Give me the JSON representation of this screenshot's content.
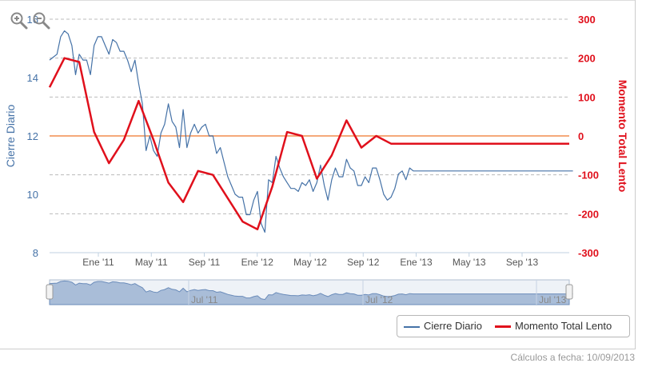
{
  "chart_data": {
    "type": "line",
    "x_labels": [
      "Ene '11",
      "May '11",
      "Sep '11",
      "Ene '12",
      "May '12",
      "Sep '12",
      "Ene '13",
      "May '13",
      "Sep '13"
    ],
    "navigator_labels": [
      "Jul '11",
      "Jul '12",
      "Jul '13"
    ],
    "y_left": {
      "label": "Cierre Diario",
      "ticks": [
        8,
        10,
        12,
        14,
        16
      ],
      "range": [
        8,
        16
      ],
      "color": "#4572a7"
    },
    "y_right": {
      "label": "Momento Total Lento",
      "ticks": [
        -300,
        -200,
        -100,
        0,
        100,
        200,
        300
      ],
      "range": [
        -300,
        300
      ],
      "color": "#e0101c"
    },
    "reference_line": {
      "axis": "right",
      "value": 0,
      "color": "#f5a97a"
    },
    "grid": "horizontal-dashed",
    "legend_position": "bottom-right",
    "series": [
      {
        "name": "Cierre Diario",
        "axis": "left",
        "color": "#4572a7",
        "x": [
          0,
          0.25,
          0.5,
          0.75,
          1,
          1.25,
          1.5,
          1.75,
          2,
          2.25,
          2.5,
          2.75,
          3,
          3.25,
          3.5,
          3.75,
          4,
          4.25,
          4.5,
          4.75,
          5,
          5.25,
          5.5,
          5.75,
          6,
          6.25,
          6.5,
          6.75,
          7,
          7.25,
          7.5,
          7.75,
          8,
          8.25,
          8.5,
          8.75,
          9,
          9.25,
          9.5,
          9.75,
          10,
          10.25,
          10.5,
          10.75,
          11,
          11.25,
          11.5,
          11.75,
          12,
          12.25,
          12.5,
          12.75,
          13,
          13.25,
          13.5,
          13.75,
          14,
          14.25,
          14.5,
          14.75,
          15,
          15.25,
          15.5,
          15.75,
          16,
          16.25,
          16.5,
          16.75,
          17,
          17.25,
          17.5,
          17.75,
          18,
          18.25,
          18.5,
          18.75,
          19,
          19.25,
          19.5,
          19.75,
          20,
          20.25,
          20.5,
          20.75,
          21,
          21.25,
          21.5,
          21.75,
          22,
          22.25,
          22.5,
          22.75,
          23,
          23.25,
          23.5,
          23.75,
          24,
          24.25,
          24.5,
          24.75,
          25,
          25.25,
          25.5,
          25.75,
          26,
          26.25,
          26.5,
          26.75,
          27,
          27.25,
          27.5,
          27.75,
          28,
          28.25,
          28.5,
          28.75,
          29,
          29.25,
          29.5,
          29.75,
          30,
          30.25,
          30.5,
          30.75,
          31,
          31.25,
          31.5,
          31.75,
          32,
          32.25,
          32.5,
          32.75,
          33,
          33.25,
          33.5,
          33.75,
          34,
          34.25,
          34.5,
          34.75,
          35,
          35.25
        ],
        "values": [
          14.6,
          14.7,
          14.8,
          15.4,
          15.6,
          15.5,
          15.1,
          14.1,
          14.8,
          14.6,
          14.6,
          14.1,
          15.1,
          15.4,
          15.4,
          15.1,
          14.8,
          15.3,
          15.2,
          14.9,
          14.9,
          14.6,
          14.2,
          14.6,
          13.8,
          13.1,
          11.5,
          12.0,
          11.5,
          11.3,
          12.1,
          12.4,
          13.1,
          12.5,
          12.3,
          11.6,
          12.9,
          11.6,
          12.1,
          12.4,
          12.1,
          12.3,
          12.4,
          12.0,
          12.0,
          11.4,
          11.6,
          11.1,
          10.6,
          10.3,
          10.0,
          9.9,
          9.9,
          9.3,
          9.3,
          9.8,
          10.1,
          9.0,
          8.7,
          10.5,
          10.4,
          11.3,
          10.9,
          10.6,
          10.4,
          10.2,
          10.2,
          10.1,
          10.4,
          10.3,
          10.5,
          10.1,
          10.4,
          11.0,
          10.3,
          9.8,
          10.5,
          10.9,
          10.6,
          10.6,
          11.2,
          10.9,
          10.8,
          10.3,
          10.3,
          10.6,
          10.4,
          10.9,
          10.9,
          10.5,
          10.0,
          9.8,
          9.9,
          10.2,
          10.7,
          10.8,
          10.5,
          10.9,
          10.8,
          10.8,
          10.8,
          10.8,
          10.8,
          10.8,
          10.8,
          10.8,
          10.8,
          10.8,
          10.8,
          10.8,
          10.8,
          10.8,
          10.8,
          10.8,
          10.8,
          10.8,
          10.8,
          10.8,
          10.8,
          10.8,
          10.8,
          10.8,
          10.8,
          10.8,
          10.8,
          10.8,
          10.8,
          10.8,
          10.8,
          10.8,
          10.8,
          10.8,
          10.8,
          10.8,
          10.8,
          10.8,
          10.8,
          10.8,
          10.8,
          10.8,
          10.8,
          10.8
        ]
      },
      {
        "name": "Momento Total Lento",
        "axis": "right",
        "color": "#e0101c",
        "x": [
          0,
          1,
          2,
          3,
          4,
          5,
          6,
          7,
          8,
          9,
          10,
          11,
          12,
          13,
          14,
          15,
          16,
          17,
          18,
          19,
          20,
          21,
          22,
          23,
          24,
          25,
          26,
          27,
          28,
          29,
          30,
          31,
          32,
          33,
          34,
          35
        ],
        "values": [
          125,
          200,
          190,
          10,
          -70,
          -10,
          90,
          -10,
          -120,
          -170,
          -90,
          -100,
          -160,
          -220,
          -240,
          -130,
          10,
          0,
          -110,
          -50,
          40,
          -30,
          0,
          -20,
          -20,
          -20,
          -20,
          -20,
          -20,
          -20,
          -20,
          -20,
          -20,
          -20,
          -20,
          -20
        ]
      }
    ]
  },
  "legend": {
    "items": [
      {
        "label": "Cierre Diario",
        "color": "#4572a7"
      },
      {
        "label": "Momento Total Lento",
        "color": "#e0101c"
      }
    ]
  },
  "footer": {
    "text": "Cálculos a fecha: 10/09/2013"
  },
  "toolbar": {
    "zoom_in_icon": "zoom-in-icon",
    "zoom_out_icon": "zoom-out-icon"
  }
}
